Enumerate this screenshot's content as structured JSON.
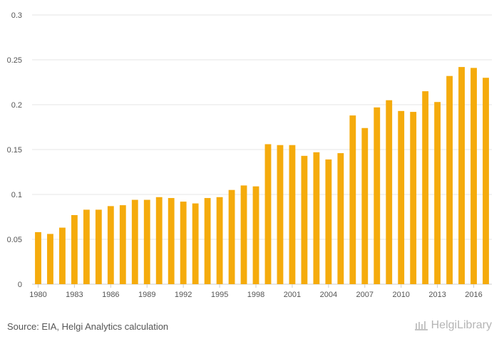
{
  "chart_data": {
    "type": "bar",
    "title": "",
    "xlabel": "",
    "ylabel": "",
    "ylim": [
      0,
      0.3
    ],
    "yticks": [
      0,
      0.05,
      0.1,
      0.15,
      0.2,
      0.25,
      0.3
    ],
    "ytick_labels": [
      "0",
      "0.05",
      "0.1",
      "0.15",
      "0.2",
      "0.25",
      "0.3"
    ],
    "categories": [
      "1980",
      "1981",
      "1982",
      "1983",
      "1984",
      "1985",
      "1986",
      "1987",
      "1988",
      "1989",
      "1990",
      "1991",
      "1992",
      "1993",
      "1994",
      "1995",
      "1996",
      "1997",
      "1998",
      "1999",
      "2000",
      "2001",
      "2002",
      "2003",
      "2004",
      "2005",
      "2006",
      "2007",
      "2008",
      "2009",
      "2010",
      "2011",
      "2012",
      "2013",
      "2014",
      "2015",
      "2016",
      "2017"
    ],
    "xtick_labels": [
      "1980",
      "1983",
      "1986",
      "1989",
      "1992",
      "1995",
      "1998",
      "2001",
      "2004",
      "2007",
      "2010",
      "2013",
      "2016"
    ],
    "values": [
      0.058,
      0.056,
      0.063,
      0.077,
      0.083,
      0.083,
      0.087,
      0.088,
      0.094,
      0.094,
      0.097,
      0.096,
      0.092,
      0.09,
      0.096,
      0.097,
      0.105,
      0.11,
      0.109,
      0.156,
      0.155,
      0.155,
      0.143,
      0.147,
      0.139,
      0.146,
      0.188,
      0.174,
      0.197,
      0.205,
      0.193,
      0.192,
      0.215,
      0.203,
      0.232,
      0.242,
      0.241,
      0.23
    ],
    "bar_color": "#f5ab0c",
    "grid": true
  },
  "footer": {
    "source": "Source: EIA, Helgi Analytics calculation",
    "brand": "HelgiLibrary"
  }
}
